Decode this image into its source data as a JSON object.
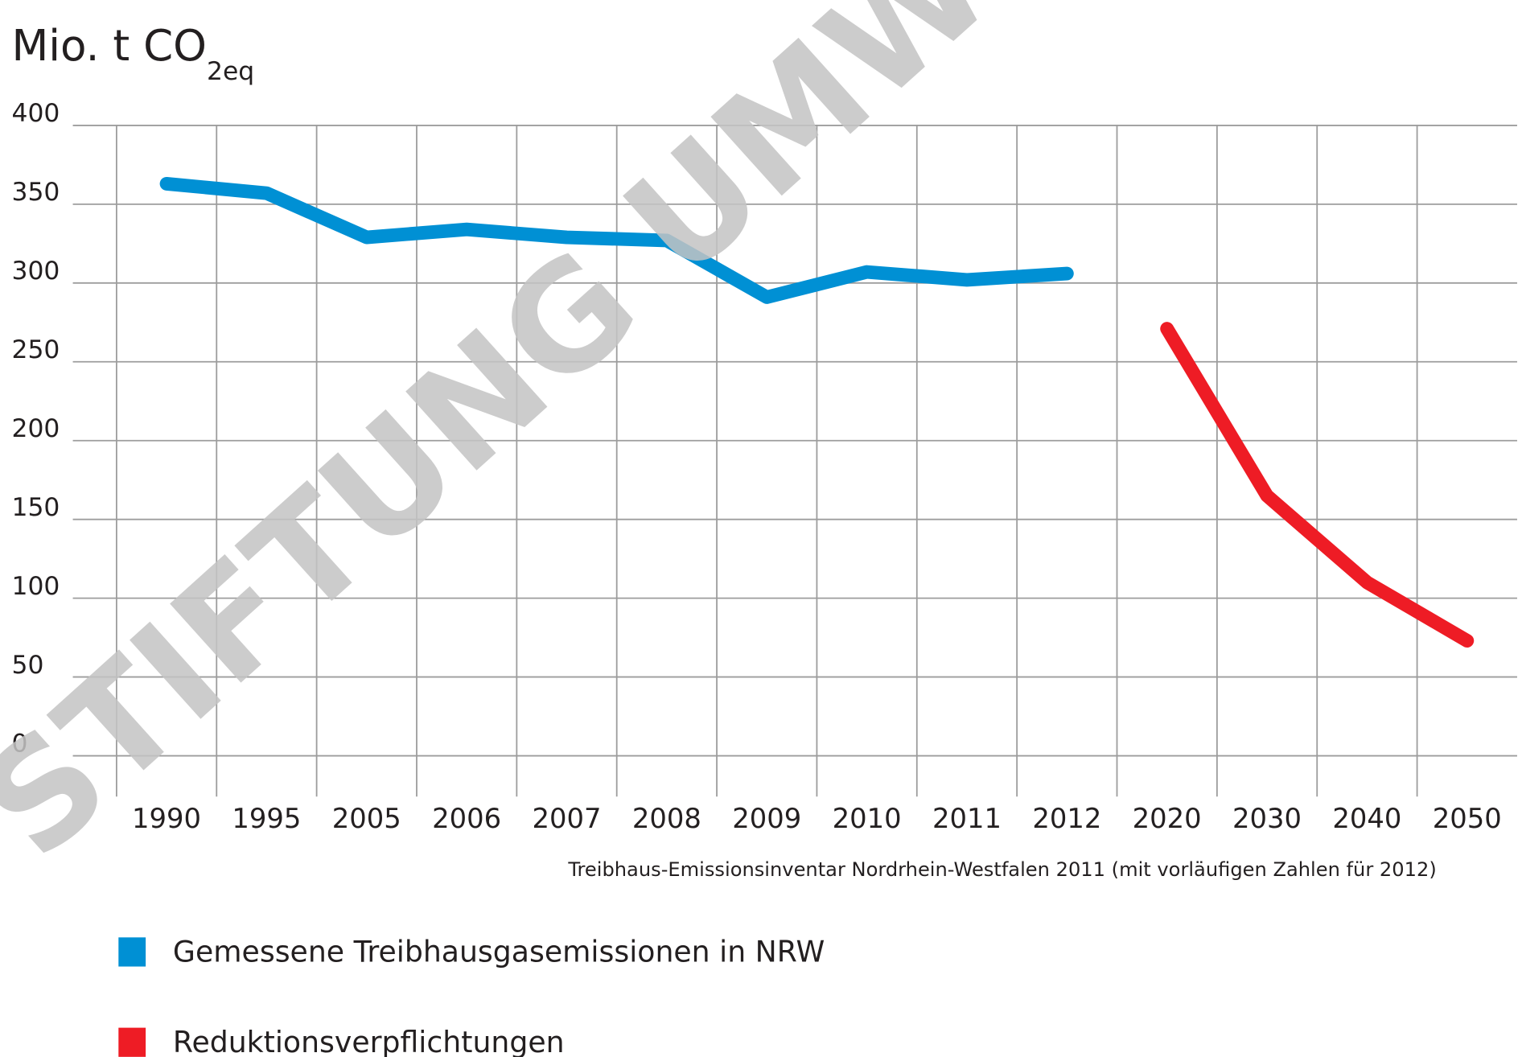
{
  "chart_data": {
    "type": "line",
    "title": "Mio. t CO",
    "title_subscript": "2eq",
    "watermark": "STIFTUNG UMWE",
    "source": "Treibhaus-Emissionsinventar Nordrhein-Westfalen 2011 (mit vorläufigen Zahlen für 2012)",
    "categories": [
      "1990",
      "1995",
      "2005",
      "2006",
      "2007",
      "2008",
      "2009",
      "2010",
      "2011",
      "2012",
      "2020",
      "2030",
      "2040",
      "2050"
    ],
    "series": [
      {
        "name": "Gemessene Treibhausgasemissionen in NRW",
        "color": "#0090d4",
        "values": [
          363,
          357,
          329,
          334,
          329,
          327,
          291,
          307,
          302,
          306,
          null,
          null,
          null,
          null
        ]
      },
      {
        "name": "Reduktionsverpflichtungen",
        "color": "#ee1c25",
        "values": [
          null,
          null,
          null,
          null,
          null,
          null,
          null,
          null,
          null,
          null,
          271,
          165,
          110,
          73
        ]
      }
    ],
    "ylim": [
      0,
      400
    ],
    "yticks": [
      0,
      50,
      100,
      150,
      200,
      250,
      300,
      350,
      400
    ],
    "grid": true
  }
}
